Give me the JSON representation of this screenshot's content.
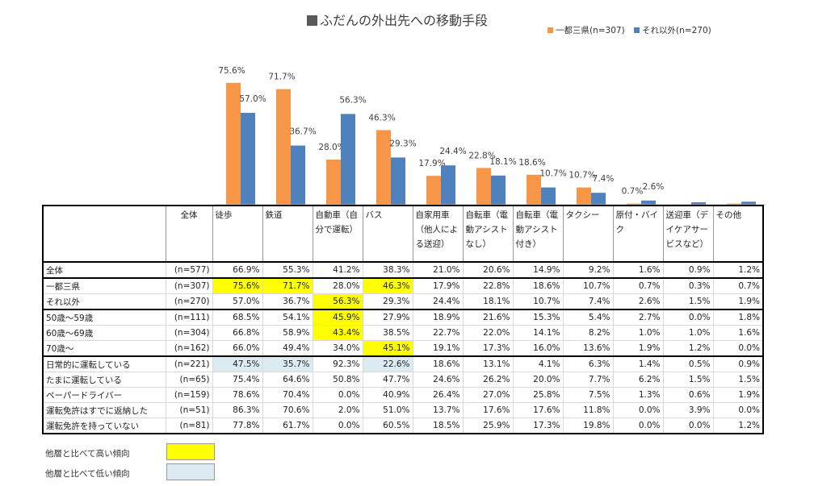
{
  "title": "ふだんの外出先への移動手段",
  "legend": [
    {
      "label": "一都三県(n=307)",
      "color": "#F79646"
    },
    {
      "label": "それ以外(n=270)",
      "color": "#4F81BD"
    }
  ],
  "chart_data": {
    "type": "bar",
    "title": "ふだんの外出先への移動手段",
    "categories": [
      "徒歩",
      "鉄道",
      "自動車（自分で運転）",
      "バス",
      "自家用車（他人による送迎）",
      "自転車（電動アシストなし）",
      "自転車（電動アシスト付き）",
      "タクシー",
      "原付・バイク",
      "送迎車（デイケアサービスなど）",
      "その他"
    ],
    "series": [
      {
        "name": "一都三県(n=307)",
        "color": "#F79646",
        "values": [
          75.6,
          71.7,
          28.0,
          46.3,
          17.9,
          22.8,
          18.6,
          10.7,
          0.7,
          0.3,
          0.7
        ]
      },
      {
        "name": "それ以外(n=270)",
        "color": "#4F81BD",
        "values": [
          57.0,
          36.7,
          56.3,
          29.3,
          24.4,
          18.1,
          10.7,
          7.4,
          2.6,
          1.5,
          1.9
        ]
      }
    ],
    "data_labels": [
      [
        "75.6%",
        "57.0%"
      ],
      [
        "71.7%",
        "36.7%"
      ],
      [
        "28.0%",
        "56.3%"
      ],
      [
        "46.3%",
        "29.3%"
      ],
      [
        "17.9%",
        "24.4%"
      ],
      [
        "22.8%",
        "18.1%"
      ],
      [
        "18.6%",
        "10.7%"
      ],
      [
        "10.7%",
        "7.4%"
      ],
      [
        "0.7%",
        "2.6%"
      ],
      [
        "",
        ""
      ],
      [
        "",
        ""
      ]
    ],
    "ylim": [
      0,
      80
    ],
    "grid": false,
    "legend_position": "top-right"
  },
  "table": {
    "headers": [
      "全体",
      "徒歩",
      "鉄道",
      "自動車（自分で運転）",
      "バス",
      "自家用車（他人による送迎）",
      "自転車（電動アシストなし）",
      "自転車（電動アシスト付き）",
      "タクシー",
      "原付・バイク",
      "送迎車（デイケアサービスなど）",
      "その他"
    ],
    "header_lines": [
      [
        "全体"
      ],
      [
        "徒歩"
      ],
      [
        "鉄道"
      ],
      [
        "自動車（自",
        "分で運転）"
      ],
      [
        "バス"
      ],
      [
        "自家用車",
        "（他人によ",
        "る送迎）"
      ],
      [
        "自転車（電",
        "動アシスト",
        "なし）"
      ],
      [
        "自転車（電",
        "動アシスト",
        "付き）"
      ],
      [
        "タクシー"
      ],
      [
        "原付・バイ",
        "ク"
      ],
      [
        "送迎車（デ",
        "イケアサー",
        "ビスなど）"
      ],
      [
        "その他"
      ]
    ],
    "rows": [
      {
        "label": "全体",
        "n": "(n=577)",
        "values": [
          "66.9%",
          "55.3%",
          "41.2%",
          "38.3%",
          "21.0%",
          "20.6%",
          "14.9%",
          "9.2%",
          "1.6%",
          "0.9%",
          "1.2%"
        ],
        "hi": [],
        "lo": [],
        "group_start": true
      },
      {
        "label": "一都三県",
        "n": "(n=307)",
        "values": [
          "75.6%",
          "71.7%",
          "28.0%",
          "46.3%",
          "17.9%",
          "22.8%",
          "18.6%",
          "10.7%",
          "0.7%",
          "0.3%",
          "0.7%"
        ],
        "hi": [
          0,
          1,
          3
        ],
        "lo": [],
        "group_start": true
      },
      {
        "label": "それ以外",
        "n": "(n=270)",
        "values": [
          "57.0%",
          "36.7%",
          "56.3%",
          "29.3%",
          "24.4%",
          "18.1%",
          "10.7%",
          "7.4%",
          "2.6%",
          "1.5%",
          "1.9%"
        ],
        "hi": [
          2
        ],
        "lo": [],
        "group_start": false
      },
      {
        "label": "50歳～59歳",
        "n": "(n=111)",
        "values": [
          "68.5%",
          "54.1%",
          "45.9%",
          "27.9%",
          "18.9%",
          "21.6%",
          "15.3%",
          "5.4%",
          "2.7%",
          "0.0%",
          "1.8%"
        ],
        "hi": [
          2
        ],
        "lo": [],
        "group_start": true
      },
      {
        "label": "60歳～69歳",
        "n": "(n=304)",
        "values": [
          "66.8%",
          "58.9%",
          "43.4%",
          "38.5%",
          "22.7%",
          "22.0%",
          "14.1%",
          "8.2%",
          "1.0%",
          "1.0%",
          "1.6%"
        ],
        "hi": [
          2
        ],
        "lo": [],
        "group_start": false
      },
      {
        "label": "70歳～",
        "n": "(n=162)",
        "values": [
          "66.0%",
          "49.4%",
          "34.0%",
          "45.1%",
          "19.1%",
          "17.3%",
          "16.0%",
          "13.6%",
          "1.9%",
          "1.2%",
          "0.0%"
        ],
        "hi": [
          3
        ],
        "lo": [],
        "group_start": false
      },
      {
        "label": "日常的に運転している",
        "n": "(n=221)",
        "values": [
          "47.5%",
          "35.7%",
          "92.3%",
          "22.6%",
          "18.6%",
          "13.1%",
          "4.1%",
          "6.3%",
          "1.4%",
          "0.5%",
          "0.9%"
        ],
        "hi": [],
        "lo": [
          0,
          1,
          3
        ],
        "group_start": true
      },
      {
        "label": "たまに運転している",
        "n": "(n=65)",
        "values": [
          "75.4%",
          "64.6%",
          "50.8%",
          "47.7%",
          "24.6%",
          "26.2%",
          "20.0%",
          "7.7%",
          "6.2%",
          "1.5%",
          "1.5%"
        ],
        "hi": [],
        "lo": [],
        "group_start": false
      },
      {
        "label": "ペーパードライバー",
        "n": "(n=159)",
        "values": [
          "78.6%",
          "70.4%",
          "0.0%",
          "40.9%",
          "26.4%",
          "27.0%",
          "25.8%",
          "7.5%",
          "1.3%",
          "0.6%",
          "1.9%"
        ],
        "hi": [],
        "lo": [],
        "group_start": false
      },
      {
        "label": "運転免許はすでに返納した",
        "n": "(n=51)",
        "values": [
          "86.3%",
          "70.6%",
          "2.0%",
          "51.0%",
          "13.7%",
          "17.6%",
          "17.6%",
          "11.8%",
          "0.0%",
          "3.9%",
          "0.0%"
        ],
        "hi": [],
        "lo": [],
        "group_start": false
      },
      {
        "label": "運転免許を持っていない",
        "n": "(n=81)",
        "values": [
          "77.8%",
          "61.7%",
          "0.0%",
          "60.5%",
          "18.5%",
          "25.9%",
          "17.3%",
          "19.8%",
          "0.0%",
          "0.0%",
          "1.2%"
        ],
        "hi": [],
        "lo": [],
        "group_start": false
      }
    ]
  },
  "notes": [
    {
      "label": "他層と比べて高い傾向",
      "color": "#FFFF00"
    },
    {
      "label": "他層と比べて低い傾向",
      "color": "#DCEBF1"
    }
  ]
}
